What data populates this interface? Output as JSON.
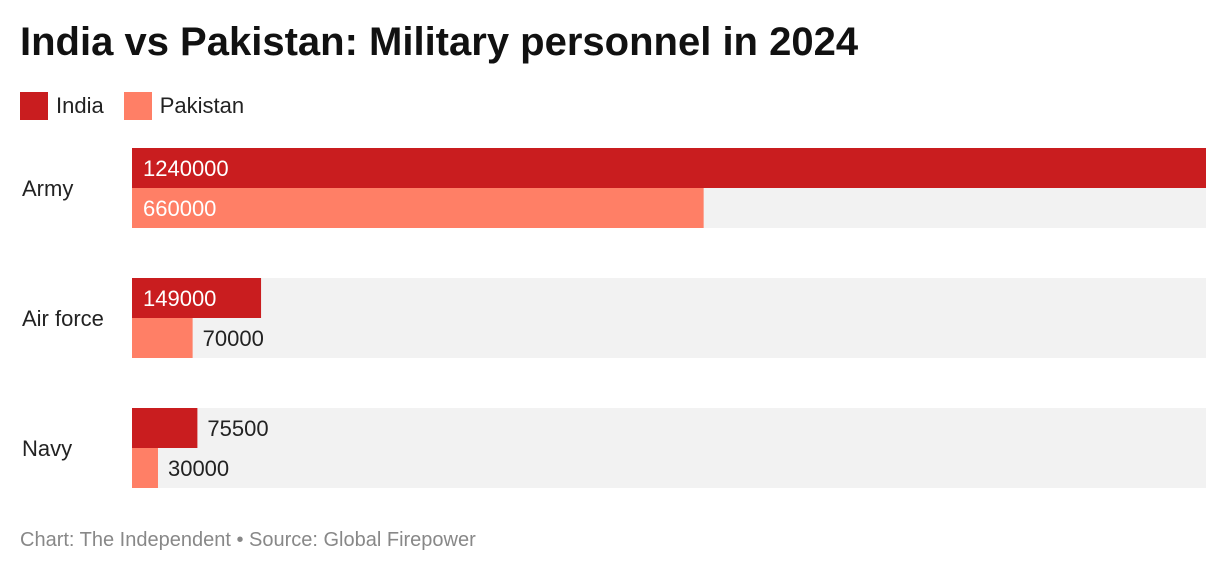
{
  "chart_data": {
    "type": "bar",
    "orientation": "horizontal",
    "title": "India vs Pakistan: Military personnel in 2024",
    "categories": [
      "Army",
      "Air force",
      "Navy"
    ],
    "series": [
      {
        "name": "India",
        "color": "#c91d1f",
        "values": [
          1240000,
          149000,
          75500
        ]
      },
      {
        "name": "Pakistan",
        "color": "#ff7f66",
        "values": [
          660000,
          70000,
          30000
        ]
      }
    ],
    "xlim": [
      0,
      1240000
    ],
    "legend_position": "top-left",
    "grid": false,
    "track_color": "#f2f2f2"
  },
  "footer": "Chart: The Independent • Source: Global Firepower"
}
